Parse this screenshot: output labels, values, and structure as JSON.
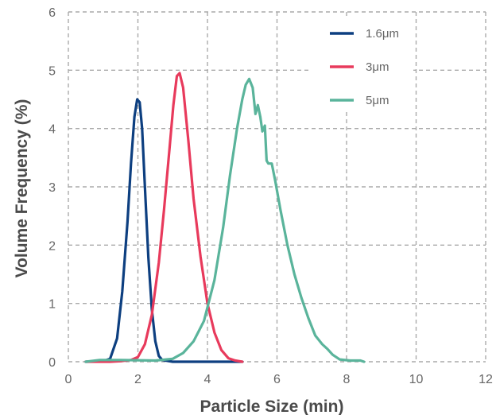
{
  "chart_data": {
    "type": "line",
    "title": "",
    "xlabel": "Particle Size (min)",
    "ylabel": "Volume Frequency (%)",
    "xlim": [
      0,
      12
    ],
    "ylim": [
      0,
      6
    ],
    "x_ticks": [
      0,
      2,
      4,
      6,
      8,
      10,
      12
    ],
    "y_ticks": [
      0,
      1,
      2,
      3,
      4,
      5,
      6
    ],
    "y_tick_labels": [
      "0",
      "1",
      "2",
      "3",
      "4",
      "5",
      "6"
    ],
    "grid": true,
    "legend_position": "top-right",
    "series": [
      {
        "name": "1.6μm",
        "color": "#0d3f80",
        "points": [
          [
            0.5,
            0
          ],
          [
            1.0,
            0.01
          ],
          [
            1.2,
            0.05
          ],
          [
            1.4,
            0.4
          ],
          [
            1.55,
            1.2
          ],
          [
            1.7,
            2.4
          ],
          [
            1.8,
            3.4
          ],
          [
            1.9,
            4.2
          ],
          [
            1.98,
            4.5
          ],
          [
            2.05,
            4.45
          ],
          [
            2.12,
            4.0
          ],
          [
            2.2,
            3.0
          ],
          [
            2.3,
            1.8
          ],
          [
            2.4,
            0.9
          ],
          [
            2.5,
            0.35
          ],
          [
            2.6,
            0.1
          ],
          [
            2.7,
            0.03
          ],
          [
            3.0,
            0
          ],
          [
            4.0,
            0
          ],
          [
            5.0,
            0
          ]
        ]
      },
      {
        "name": "3μm",
        "color": "#e83a5c",
        "points": [
          [
            0.5,
            0
          ],
          [
            1.2,
            0
          ],
          [
            1.5,
            0.01
          ],
          [
            1.8,
            0.03
          ],
          [
            2.0,
            0.08
          ],
          [
            2.2,
            0.3
          ],
          [
            2.4,
            0.8
          ],
          [
            2.6,
            1.7
          ],
          [
            2.75,
            2.6
          ],
          [
            2.9,
            3.6
          ],
          [
            3.02,
            4.4
          ],
          [
            3.12,
            4.9
          ],
          [
            3.2,
            4.95
          ],
          [
            3.3,
            4.7
          ],
          [
            3.45,
            3.8
          ],
          [
            3.6,
            2.8
          ],
          [
            3.8,
            1.8
          ],
          [
            4.0,
            1.0
          ],
          [
            4.2,
            0.5
          ],
          [
            4.4,
            0.2
          ],
          [
            4.6,
            0.06
          ],
          [
            4.8,
            0.02
          ],
          [
            5.0,
            0
          ]
        ]
      },
      {
        "name": "5μm",
        "color": "#5ab49b",
        "points": [
          [
            0.5,
            0
          ],
          [
            0.9,
            0.03
          ],
          [
            1.5,
            0.03
          ],
          [
            2.5,
            0.02
          ],
          [
            3.0,
            0.05
          ],
          [
            3.3,
            0.15
          ],
          [
            3.6,
            0.35
          ],
          [
            3.9,
            0.7
          ],
          [
            4.2,
            1.4
          ],
          [
            4.45,
            2.3
          ],
          [
            4.65,
            3.2
          ],
          [
            4.85,
            4.0
          ],
          [
            5.0,
            4.5
          ],
          [
            5.1,
            4.75
          ],
          [
            5.2,
            4.85
          ],
          [
            5.3,
            4.7
          ],
          [
            5.38,
            4.25
          ],
          [
            5.45,
            4.4
          ],
          [
            5.52,
            4.2
          ],
          [
            5.58,
            3.95
          ],
          [
            5.65,
            4.05
          ],
          [
            5.7,
            3.45
          ],
          [
            5.75,
            3.4
          ],
          [
            5.85,
            3.4
          ],
          [
            5.95,
            3.1
          ],
          [
            6.1,
            2.6
          ],
          [
            6.3,
            2.0
          ],
          [
            6.5,
            1.5
          ],
          [
            6.7,
            1.1
          ],
          [
            6.9,
            0.75
          ],
          [
            7.1,
            0.45
          ],
          [
            7.3,
            0.3
          ],
          [
            7.45,
            0.22
          ],
          [
            7.6,
            0.12
          ],
          [
            7.8,
            0.04
          ],
          [
            8.1,
            0.02
          ],
          [
            8.4,
            0.02
          ],
          [
            8.5,
            0
          ]
        ]
      }
    ]
  }
}
